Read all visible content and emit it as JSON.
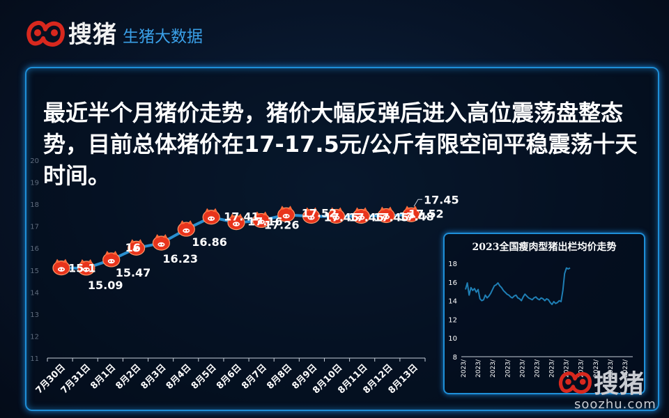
{
  "brand": {
    "name": "搜猪",
    "subtitle": "生猪大数据",
    "url": "soozhu.com"
  },
  "headline": "最近半个月猪价走势，猪价大幅反弹后进入高位震荡盘整态势，目前总体猪价在17-17.5元/公斤有限空间平稳震荡十天时间。",
  "colors": {
    "accent": "#1e8fd8",
    "line": "#2a8fcf",
    "marker": "#e8341c",
    "inset_line": "#1f7fb5"
  },
  "chart_data": [
    {
      "type": "line",
      "title": "",
      "xlabel": "",
      "ylabel": "",
      "categories": [
        "7月30日",
        "7月31日",
        "8月1日",
        "8月2日",
        "8月3日",
        "8月4日",
        "8月5日",
        "8月6日",
        "8月7日",
        "8月8日",
        "8月9日",
        "8月10日",
        "8月11日",
        "8月12日",
        "8月13日"
      ],
      "tick_labels": [
        "7月30日",
        "7月31日",
        "8月1日",
        "8月2日",
        "8月3日",
        "8月4日",
        "8月5日",
        "8月6日",
        "8月7日",
        "8月8日",
        "8月9日",
        "8月10日",
        "8月11日",
        "8月12日",
        "8月13日"
      ],
      "values": [
        15.1,
        15.09,
        15.47,
        16,
        16.23,
        16.86,
        17.41,
        17.16,
        17.26,
        17.52,
        17.45,
        17.45,
        17.45,
        17.48,
        17.52
      ],
      "data_labels": [
        "15.1",
        "15.09",
        "15.47",
        "16",
        "16.23",
        "16.86",
        "17.41",
        "17.16",
        "17.26",
        "17.52",
        "17.45",
        "17.45",
        "17.45",
        "17.48",
        "17.52"
      ],
      "annotation": "17.45",
      "ylim": [
        11,
        20
      ],
      "y_ticks": [
        "11",
        "12",
        "13",
        "14",
        "15",
        "16",
        "17",
        "18",
        "19",
        "20"
      ],
      "grid": false,
      "marker": "pig-icon"
    },
    {
      "type": "line",
      "title": "2023全国瘦肉型猪出栏均价走势",
      "xlabel": "",
      "ylabel": "",
      "ylim": [
        8,
        18
      ],
      "y_ticks": [
        "8",
        "10",
        "12",
        "14",
        "16",
        "18"
      ],
      "x_tick_labels": [
        "2023/",
        "2023/",
        "2023/",
        "2023/",
        "2023/",
        "2023/",
        "2023/",
        "2023/",
        "2023/",
        "2023/",
        "2023/",
        "2023/"
      ],
      "values": [
        15.2,
        15.9,
        14.6,
        15.4,
        15.1,
        15.3,
        14.9,
        15.2,
        14.2,
        14.0,
        14.1,
        14.6,
        14.3,
        14.5,
        14.8,
        15.2,
        15.6,
        15.7,
        15.9,
        15.6,
        15.4,
        15.1,
        14.9,
        14.7,
        14.6,
        14.4,
        14.3,
        14.5,
        14.6,
        14.3,
        14.2,
        14.0,
        14.4,
        14.7,
        14.5,
        14.3,
        14.2,
        14.1,
        14.3,
        14.4,
        14.2,
        14.1,
        14.3,
        14.2,
        14.0,
        14.2,
        14.1,
        13.8,
        13.6,
        13.9,
        13.7,
        13.8,
        14.0,
        13.9,
        15.1,
        16.9,
        17.5,
        17.4,
        17.5
      ],
      "grid": false
    }
  ]
}
